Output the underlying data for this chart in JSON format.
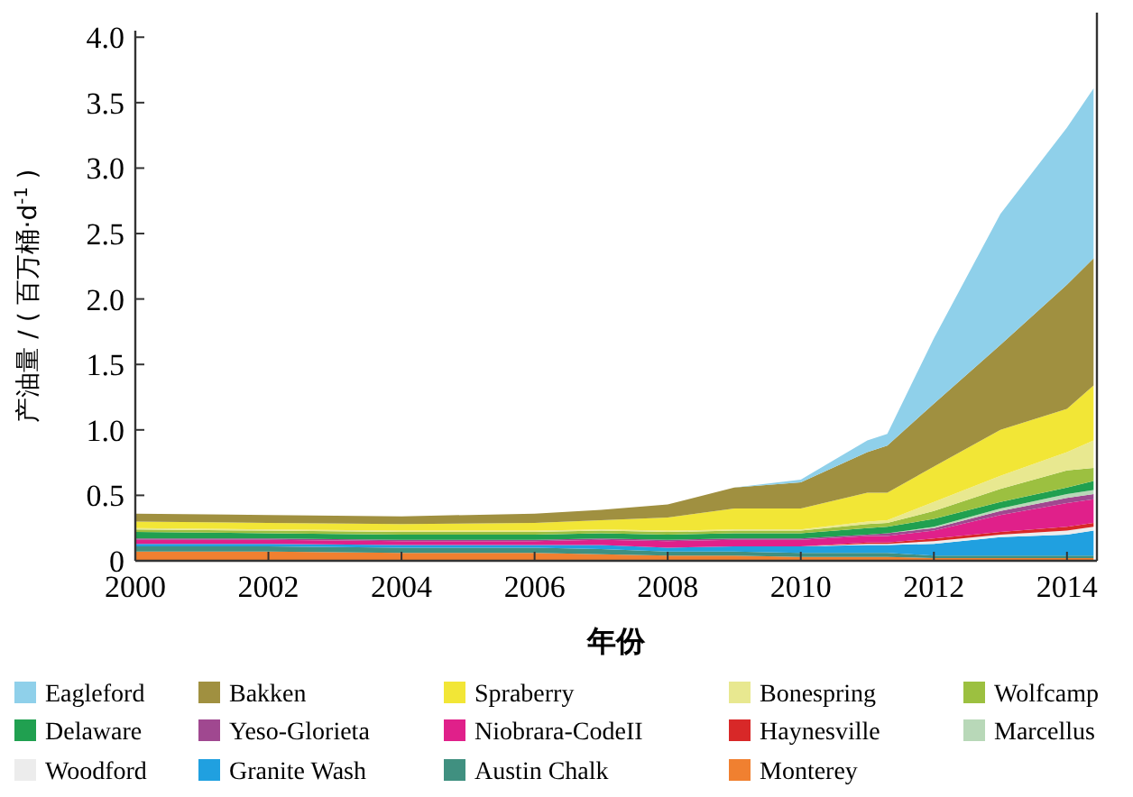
{
  "chart_data": {
    "type": "area",
    "stacked": true,
    "xlabel": "年份",
    "ylabel": "产油量 / ( 百万桶·d$^{-1}$ )",
    "legend": "bottom",
    "x": [
      2000,
      2002,
      2004,
      2006,
      2007,
      2008,
      2009,
      2010,
      2011,
      2011.3,
      2012,
      2013,
      2014,
      2014.4
    ],
    "xlim": [
      2000,
      2014.45
    ],
    "xticks": [
      2000,
      2002,
      2004,
      2006,
      2008,
      2010,
      2012,
      2014
    ],
    "ylim": [
      0,
      4.05
    ],
    "yticks": [
      0,
      {
        "value": 0.5,
        "label": "0.5"
      },
      {
        "value": 1,
        "label": "1.0"
      },
      {
        "value": 1.5,
        "label": "1.5"
      },
      {
        "value": 2,
        "label": "2.0"
      },
      {
        "value": 2.5,
        "label": "2.5"
      },
      {
        "value": 3,
        "label": "3.0"
      },
      {
        "value": 3.5,
        "label": "3.5"
      },
      {
        "value": 4,
        "label": "4.0"
      }
    ],
    "series": [
      {
        "name": "Monterey",
        "color": "#f08030",
        "values": [
          0.07,
          0.07,
          0.06,
          0.06,
          0.05,
          0.04,
          0.04,
          0.03,
          0.03,
          0.03,
          0.02,
          0.02,
          0.02,
          0.02
        ]
      },
      {
        "name": "Austin Chalk",
        "color": "#409080",
        "values": [
          0.04,
          0.04,
          0.04,
          0.04,
          0.04,
          0.03,
          0.03,
          0.03,
          0.03,
          0.03,
          0.02,
          0.02,
          0.02,
          0.02
        ]
      },
      {
        "name": "Granite Wash",
        "color": "#20a0e0",
        "values": [
          0.02,
          0.02,
          0.02,
          0.02,
          0.03,
          0.03,
          0.04,
          0.05,
          0.06,
          0.06,
          0.09,
          0.14,
          0.16,
          0.19
        ]
      },
      {
        "name": "Woodford",
        "color": "#ececec",
        "values": [
          0,
          0,
          0,
          0,
          0,
          0,
          0,
          0,
          0.01,
          0.01,
          0.02,
          0.02,
          0.03,
          0.03
        ]
      },
      {
        "name": "Haynesville",
        "color": "#d82828",
        "values": [
          0,
          0,
          0,
          0,
          0,
          0,
          0,
          0,
          0.01,
          0.01,
          0.02,
          0.02,
          0.03,
          0.03
        ]
      },
      {
        "name": "Niobrara-CodeII",
        "color": "#e0208a",
        "values": [
          0.03,
          0.03,
          0.03,
          0.03,
          0.04,
          0.05,
          0.05,
          0.05,
          0.05,
          0.05,
          0.06,
          0.13,
          0.18,
          0.18
        ]
      },
      {
        "name": "Yeso-Glorieta",
        "color": "#a04890",
        "values": [
          0.01,
          0.01,
          0.01,
          0.01,
          0.01,
          0.01,
          0.01,
          0.01,
          0.01,
          0.02,
          0.02,
          0.03,
          0.04,
          0.04
        ]
      },
      {
        "name": "Marcellus",
        "color": "#b8d8b8",
        "values": [
          0,
          0,
          0,
          0,
          0,
          0,
          0,
          0,
          0,
          0,
          0.01,
          0.02,
          0.03,
          0.03
        ]
      },
      {
        "name": "Delaware",
        "color": "#20a050",
        "values": [
          0.05,
          0.04,
          0.04,
          0.04,
          0.04,
          0.04,
          0.04,
          0.04,
          0.05,
          0.05,
          0.06,
          0.05,
          0.05,
          0.07
        ]
      },
      {
        "name": "Wolfcamp",
        "color": "#9cc040",
        "values": [
          0.02,
          0.02,
          0.02,
          0.02,
          0.02,
          0.02,
          0.02,
          0.02,
          0.03,
          0.03,
          0.06,
          0.1,
          0.13,
          0.1
        ]
      },
      {
        "name": "Bonespring",
        "color": "#e8e890",
        "values": [
          0.01,
          0.01,
          0.01,
          0.01,
          0.01,
          0.01,
          0.01,
          0.01,
          0.02,
          0.02,
          0.07,
          0.1,
          0.14,
          0.21
        ]
      },
      {
        "name": "Spraberry",
        "color": "#f2e636",
        "values": [
          0.05,
          0.05,
          0.05,
          0.06,
          0.07,
          0.1,
          0.16,
          0.16,
          0.22,
          0.21,
          0.27,
          0.35,
          0.33,
          0.42
        ]
      },
      {
        "name": "Bakken",
        "color": "#a09040",
        "values": [
          0.06,
          0.06,
          0.06,
          0.07,
          0.08,
          0.1,
          0.16,
          0.2,
          0.31,
          0.36,
          0.48,
          0.65,
          0.95,
          0.97
        ]
      },
      {
        "name": "Eagleford",
        "color": "#8fd0ea",
        "values": [
          0,
          0,
          0,
          0,
          0,
          0,
          0,
          0.02,
          0.09,
          0.09,
          0.5,
          1,
          1.2,
          1.3
        ]
      }
    ]
  }
}
